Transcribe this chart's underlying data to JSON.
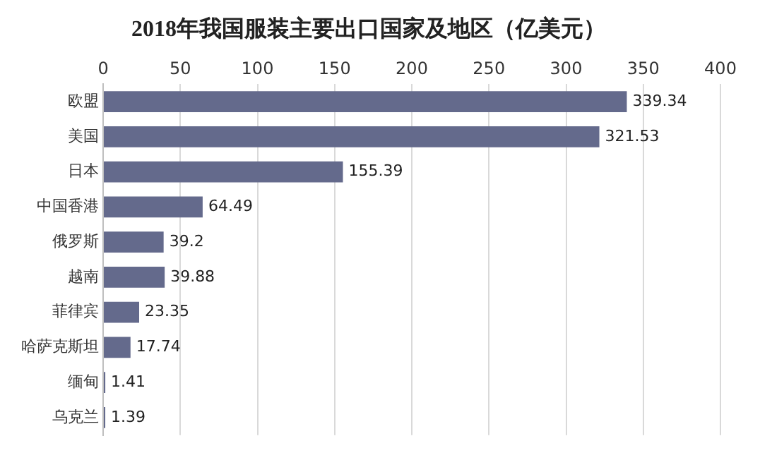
{
  "chart_data": {
    "type": "bar",
    "orientation": "horizontal",
    "title": "2018年我国服装主要出口国家及地区（亿美元）",
    "categories": [
      "欧盟",
      "美国",
      "日本",
      "中国香港",
      "俄罗斯",
      "越南",
      "菲律宾",
      "哈萨克斯坦",
      "缅甸",
      "乌克兰"
    ],
    "values": [
      339.34,
      321.53,
      155.39,
      64.49,
      39.2,
      39.88,
      23.35,
      17.74,
      1.41,
      1.39
    ],
    "color": "#646a8c",
    "xlim": [
      0,
      400
    ],
    "xticks": [
      0,
      50,
      100,
      150,
      200,
      250,
      300,
      350,
      400
    ],
    "grid": "x",
    "data_labels": true,
    "legend": false
  }
}
